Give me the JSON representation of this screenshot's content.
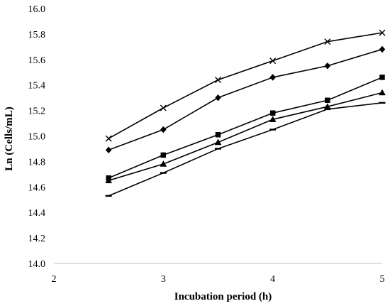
{
  "chart_data": {
    "type": "line",
    "title": "",
    "xlabel": "Incubation period (h)",
    "ylabel": "Ln (Cells/mL)",
    "xlim": [
      2,
      5
    ],
    "ylim": [
      14.0,
      16.0
    ],
    "xticks": [
      2,
      3,
      4,
      5
    ],
    "yticks": [
      14.0,
      14.2,
      14.4,
      14.6,
      14.8,
      15.0,
      15.2,
      15.4,
      15.6,
      15.8,
      16.0
    ],
    "xtick_labels": [
      "2",
      "3",
      "4",
      "5"
    ],
    "ytick_labels": [
      "14.0",
      "14.2",
      "14.4",
      "14.6",
      "14.8",
      "15.0",
      "15.2",
      "15.4",
      "15.6",
      "15.8",
      "16.0"
    ],
    "grid": false,
    "legend": "none",
    "x": [
      2.5,
      3.0,
      3.5,
      4.0,
      4.5,
      5.0
    ],
    "series": [
      {
        "marker": "x",
        "color": "#000000",
        "values": [
          14.98,
          15.22,
          15.44,
          15.59,
          15.74,
          15.81
        ]
      },
      {
        "marker": "diamond",
        "color": "#000000",
        "values": [
          14.89,
          15.05,
          15.3,
          15.46,
          15.55,
          15.68
        ]
      },
      {
        "marker": "square",
        "color": "#000000",
        "values": [
          14.67,
          14.85,
          15.01,
          15.18,
          15.28,
          15.46
        ]
      },
      {
        "marker": "triangle",
        "color": "#000000",
        "values": [
          14.65,
          14.78,
          14.95,
          15.13,
          15.23,
          15.34
        ]
      },
      {
        "marker": "dash",
        "color": "#000000",
        "values": [
          14.53,
          14.71,
          14.9,
          15.05,
          15.21,
          15.26
        ]
      }
    ]
  }
}
